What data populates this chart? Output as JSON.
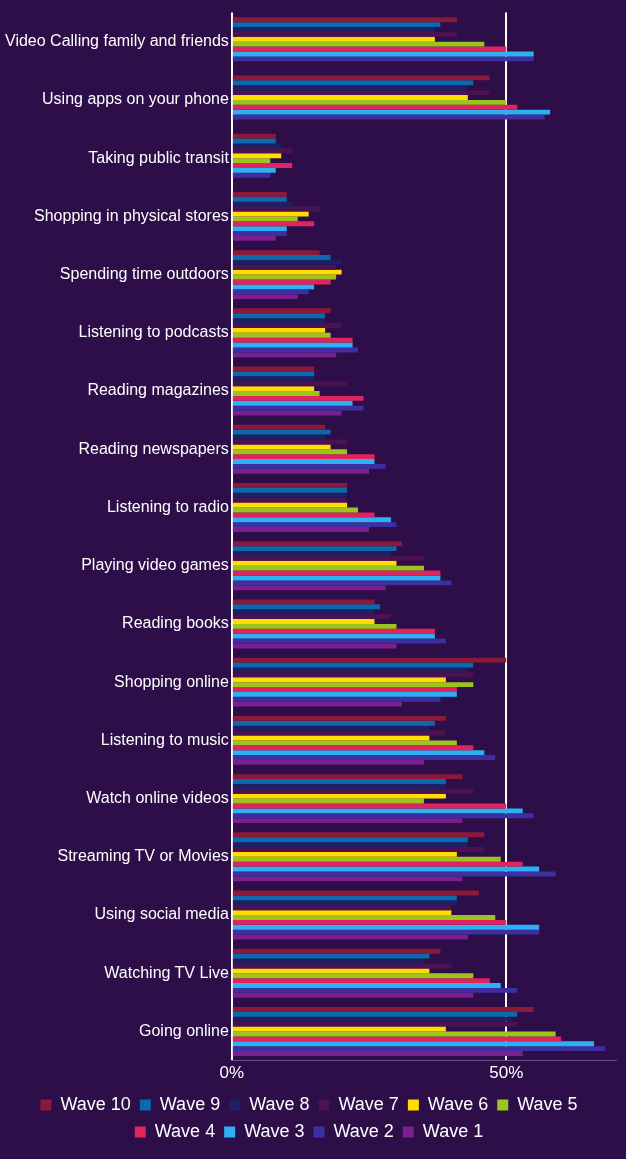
{
  "chart_data": {
    "type": "bar",
    "orientation": "horizontal",
    "categories": [
      "Video Calling family and friends",
      "Using apps on your phone",
      "Taking public transit",
      "Shopping in physical stores",
      "Spending time outdoors",
      "Listening to podcasts",
      "Reading magazines",
      "Reading newspapers",
      "Listening to radio",
      "Playing video games",
      "Reading books",
      "Shopping online",
      "Listening to music",
      "Watch online videos",
      "Streaming TV or Movies",
      "Using social media",
      "Watching TV Live",
      "Going online"
    ],
    "series": [
      {
        "name": "Wave 10",
        "color": "#8b1a3a",
        "values": [
          41,
          47,
          8,
          10,
          16,
          18,
          15,
          17,
          21,
          31,
          26,
          50,
          39,
          42,
          46,
          45,
          38,
          55
        ]
      },
      {
        "name": "Wave 9",
        "color": "#0a6aad",
        "values": [
          38,
          44,
          8,
          10,
          18,
          17,
          15,
          18,
          21,
          30,
          27,
          44,
          37,
          39,
          43,
          41,
          36,
          52
        ]
      },
      {
        "name": "Wave 8",
        "color": "#1f1f63",
        "values": [
          37,
          43,
          9,
          11,
          20,
          17,
          15,
          17,
          21,
          29,
          26,
          43,
          36,
          39,
          43,
          41,
          35,
          51
        ]
      },
      {
        "name": "Wave 7",
        "color": "#4a1250",
        "values": [
          41,
          47,
          11,
          16,
          19,
          20,
          21,
          21,
          21,
          35,
          29,
          44,
          39,
          44,
          46,
          40,
          40,
          52
        ]
      },
      {
        "name": "Wave 6",
        "color": "#ffdd00",
        "values": [
          37,
          43,
          9,
          14,
          20,
          17,
          15,
          18,
          21,
          30,
          26,
          39,
          36,
          39,
          41,
          40,
          36,
          39
        ]
      },
      {
        "name": "Wave 5",
        "color": "#9dc41e",
        "values": [
          46,
          50,
          7,
          12,
          19,
          18,
          16,
          21,
          23,
          35,
          30,
          44,
          41,
          35,
          49,
          48,
          44,
          59
        ]
      },
      {
        "name": "Wave 4",
        "color": "#e0245e",
        "values": [
          50,
          52,
          11,
          15,
          18,
          22,
          24,
          26,
          26,
          38,
          37,
          41,
          44,
          50,
          53,
          50,
          47,
          60
        ]
      },
      {
        "name": "Wave 3",
        "color": "#2eb0f5",
        "values": [
          55,
          58,
          8,
          10,
          15,
          22,
          22,
          26,
          29,
          38,
          37,
          41,
          46,
          53,
          56,
          56,
          49,
          66
        ]
      },
      {
        "name": "Wave 2",
        "color": "#3d2fa0",
        "values": [
          55,
          57,
          7,
          10,
          14,
          23,
          24,
          28,
          30,
          40,
          39,
          38,
          48,
          55,
          59,
          56,
          52,
          68
        ]
      },
      {
        "name": "Wave 1",
        "color": "#7b1f8f",
        "values": [
          null,
          null,
          null,
          8,
          12,
          19,
          20,
          25,
          25,
          28,
          30,
          31,
          35,
          42,
          42,
          43,
          44,
          53
        ]
      }
    ],
    "xlim": [
      0,
      70
    ],
    "xticks": [
      {
        "value": 0,
        "label": "0%"
      },
      {
        "value": 50,
        "label": "50%"
      }
    ],
    "grid": "x",
    "legend": "bottom"
  }
}
